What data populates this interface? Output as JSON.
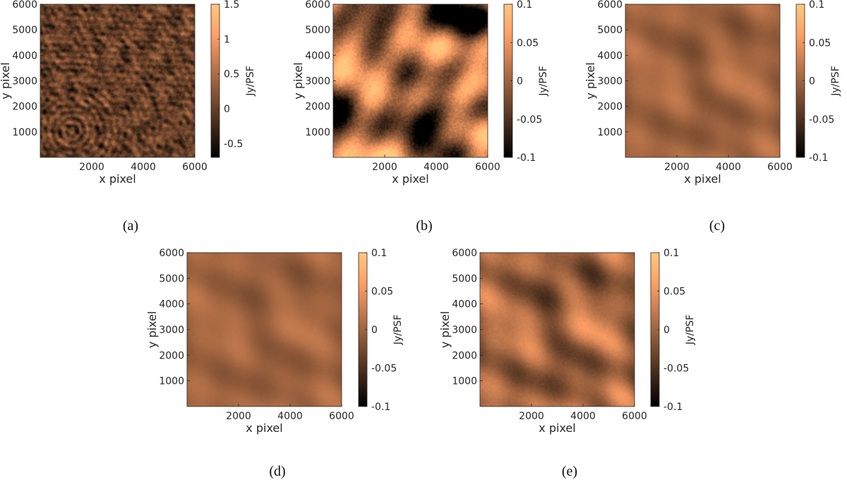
{
  "chart_data": [
    {
      "type": "heatmap",
      "caption": "(a)",
      "xlabel": "x pixel",
      "ylabel": "y pixel",
      "xlim": [
        0,
        6000
      ],
      "ylim": [
        0,
        6000
      ],
      "xticks": [
        "2000",
        "4000",
        "6000"
      ],
      "yticks": [
        "1000",
        "2000",
        "3000",
        "4000",
        "5000",
        "6000"
      ],
      "colorbar": {
        "label": "Jy/PSF",
        "range": [
          -0.7,
          1.5
        ],
        "ticks": [
          "-0.5",
          "0",
          "0.5",
          "1",
          "1.5"
        ]
      },
      "colormap": "copper"
    },
    {
      "type": "heatmap",
      "caption": "(b)",
      "xlabel": "x pixel",
      "ylabel": "y pixel",
      "xlim": [
        0,
        6000
      ],
      "ylim": [
        0,
        6000
      ],
      "xticks": [
        "2000",
        "4000",
        "6000"
      ],
      "yticks": [
        "1000",
        "2000",
        "3000",
        "4000",
        "5000",
        "6000"
      ],
      "colorbar": {
        "label": "Jy/PSF",
        "range": [
          -0.1,
          0.1
        ],
        "ticks": [
          "-0.1",
          "-0.05",
          "0",
          "0.05",
          "0.1"
        ]
      },
      "colormap": "copper"
    },
    {
      "type": "heatmap",
      "caption": "(c)",
      "xlabel": "x pixel",
      "ylabel": "y pixel",
      "xlim": [
        0,
        6000
      ],
      "ylim": [
        0,
        6000
      ],
      "xticks": [
        "2000",
        "4000",
        "6000"
      ],
      "yticks": [
        "1000",
        "2000",
        "3000",
        "4000",
        "5000",
        "6000"
      ],
      "colorbar": {
        "label": "Jy/PSF",
        "range": [
          -0.1,
          0.1
        ],
        "ticks": [
          "-0.1",
          "-0.05",
          "0",
          "0.05",
          "0.1"
        ]
      },
      "colormap": "copper"
    },
    {
      "type": "heatmap",
      "caption": "(d)",
      "xlabel": "x pixel",
      "ylabel": "y pixel",
      "xlim": [
        0,
        6000
      ],
      "ylim": [
        0,
        6000
      ],
      "xticks": [
        "2000",
        "4000",
        "6000"
      ],
      "yticks": [
        "1000",
        "2000",
        "3000",
        "4000",
        "5000",
        "6000"
      ],
      "colorbar": {
        "label": "Jy/PSF",
        "range": [
          -0.1,
          0.1
        ],
        "ticks": [
          "-0.1",
          "-0.05",
          "0",
          "0.05",
          "0.1"
        ]
      },
      "colormap": "copper"
    },
    {
      "type": "heatmap",
      "caption": "(e)",
      "xlabel": "x pixel",
      "ylabel": "y pixel",
      "xlim": [
        0,
        6000
      ],
      "ylim": [
        0,
        6000
      ],
      "xticks": [
        "2000",
        "4000",
        "6000"
      ],
      "yticks": [
        "1000",
        "2000",
        "3000",
        "4000",
        "5000",
        "6000"
      ],
      "colorbar": {
        "label": "Jy/PSF",
        "range": [
          -0.1,
          0.1
        ],
        "ticks": [
          "-0.1",
          "-0.05",
          "0",
          "0.05",
          "0.1"
        ]
      },
      "colormap": "copper"
    }
  ]
}
